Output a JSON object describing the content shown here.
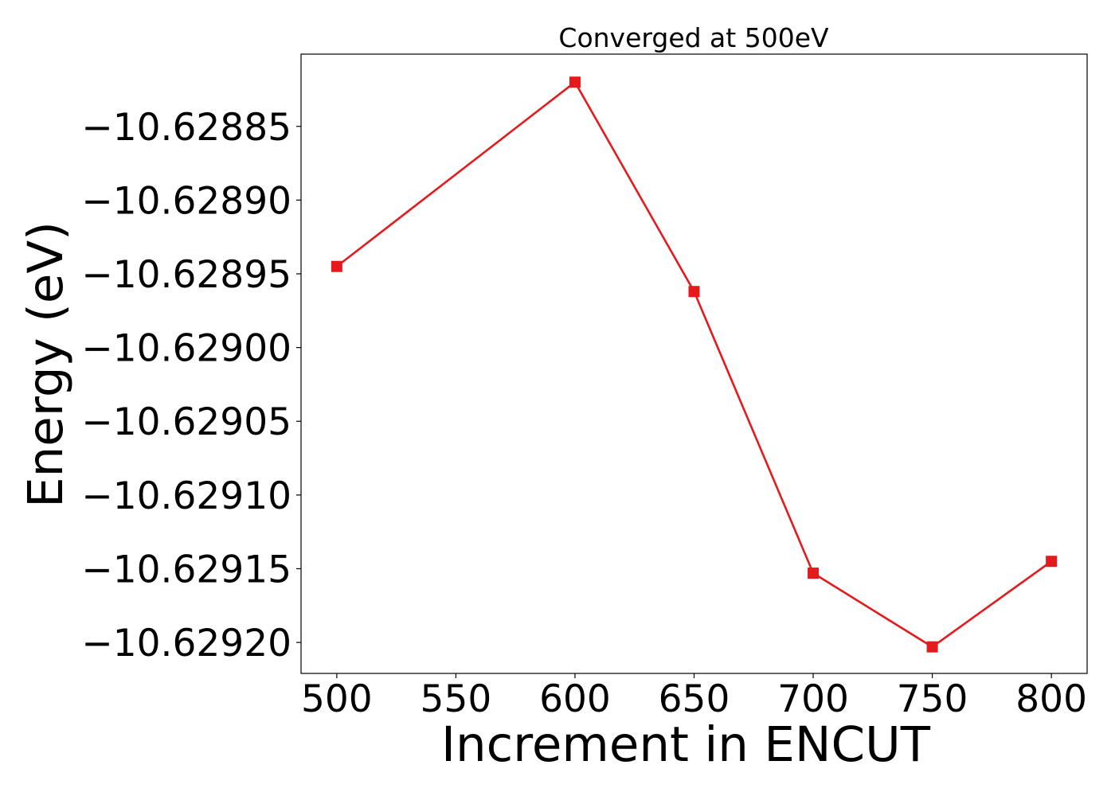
{
  "chart_data": {
    "type": "line",
    "title": "Converged at 500eV",
    "xlabel": "Increment in ENCUT",
    "ylabel": "Energy (eV)",
    "x": [
      500,
      600,
      650,
      700,
      750,
      800
    ],
    "series": [
      {
        "values": [
          -10.628945,
          -10.62882,
          -10.628962,
          -10.629153,
          -10.629203,
          -10.629145
        ],
        "color": "#e41a1c",
        "marker": "square"
      }
    ],
    "xlim": [
      485,
      815
    ],
    "ylim": [
      -10.629221,
      -10.628801
    ],
    "xticks": [
      500,
      550,
      600,
      650,
      700,
      750,
      800
    ],
    "xtick_labels": [
      "500",
      "550",
      "600",
      "650",
      "700",
      "750",
      "800"
    ],
    "yticks": [
      -10.62885,
      -10.6289,
      -10.62895,
      -10.629,
      -10.62905,
      -10.6291,
      -10.62915,
      -10.6292
    ],
    "ytick_labels": [
      "−10.62885",
      "−10.62890",
      "−10.62895",
      "−10.62900",
      "−10.62905",
      "−10.62910",
      "−10.62915",
      "−10.62920"
    ],
    "grid": false,
    "legend": "none"
  }
}
